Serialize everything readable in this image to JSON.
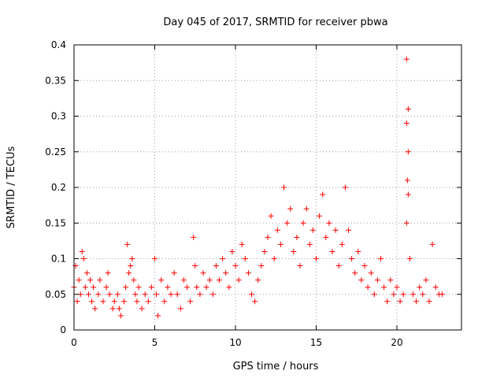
{
  "chart_data": {
    "type": "scatter",
    "title": "Day 045 of 2017, SRMTID for receiver pbwa",
    "xlabel": "GPS time / hours",
    "ylabel": "SRMTID / TECUs",
    "xlim": [
      0,
      24
    ],
    "ylim": [
      0,
      0.4
    ],
    "xticks": [
      0,
      5,
      10,
      15,
      20
    ],
    "xtick_labels": [
      "0",
      "5",
      "10",
      "15",
      "20"
    ],
    "yticks": [
      0,
      0.05,
      0.1,
      0.15,
      0.2,
      0.25,
      0.3,
      0.35,
      0.4
    ],
    "ytick_labels": [
      "0",
      "0.05",
      "0.1",
      "0.15",
      "0.2",
      "0.25",
      "0.3",
      "0.35",
      "0.4"
    ],
    "grid": true,
    "marker": "plus",
    "color": "#ff0000",
    "series": [
      {
        "name": "SRMTID",
        "points": [
          [
            0.0,
            0.06
          ],
          [
            0.1,
            0.09
          ],
          [
            0.2,
            0.04
          ],
          [
            0.3,
            0.07
          ],
          [
            0.4,
            0.05
          ],
          [
            0.5,
            0.11
          ],
          [
            0.6,
            0.1
          ],
          [
            0.7,
            0.06
          ],
          [
            0.8,
            0.08
          ],
          [
            0.9,
            0.05
          ],
          [
            1.0,
            0.07
          ],
          [
            1.1,
            0.04
          ],
          [
            1.2,
            0.06
          ],
          [
            1.3,
            0.03
          ],
          [
            1.5,
            0.05
          ],
          [
            1.6,
            0.07
          ],
          [
            1.8,
            0.04
          ],
          [
            2.0,
            0.06
          ],
          [
            2.1,
            0.08
          ],
          [
            2.2,
            0.05
          ],
          [
            2.4,
            0.03
          ],
          [
            2.5,
            0.04
          ],
          [
            2.7,
            0.05
          ],
          [
            2.8,
            0.03
          ],
          [
            2.9,
            0.02
          ],
          [
            3.1,
            0.04
          ],
          [
            3.2,
            0.06
          ],
          [
            3.3,
            0.12
          ],
          [
            3.4,
            0.08
          ],
          [
            3.5,
            0.09
          ],
          [
            3.6,
            0.1
          ],
          [
            3.7,
            0.07
          ],
          [
            3.8,
            0.05
          ],
          [
            3.9,
            0.04
          ],
          [
            4.0,
            0.06
          ],
          [
            4.2,
            0.03
          ],
          [
            4.4,
            0.05
          ],
          [
            4.6,
            0.04
          ],
          [
            4.8,
            0.06
          ],
          [
            5.0,
            0.1
          ],
          [
            5.1,
            0.05
          ],
          [
            5.2,
            0.02
          ],
          [
            5.4,
            0.07
          ],
          [
            5.6,
            0.04
          ],
          [
            5.8,
            0.06
          ],
          [
            6.0,
            0.05
          ],
          [
            6.2,
            0.08
          ],
          [
            6.4,
            0.05
          ],
          [
            6.6,
            0.03
          ],
          [
            6.8,
            0.07
          ],
          [
            7.0,
            0.06
          ],
          [
            7.2,
            0.04
          ],
          [
            7.4,
            0.13
          ],
          [
            7.5,
            0.09
          ],
          [
            7.6,
            0.06
          ],
          [
            7.8,
            0.05
          ],
          [
            8.0,
            0.08
          ],
          [
            8.2,
            0.06
          ],
          [
            8.4,
            0.07
          ],
          [
            8.6,
            0.05
          ],
          [
            8.8,
            0.09
          ],
          [
            9.0,
            0.07
          ],
          [
            9.2,
            0.1
          ],
          [
            9.4,
            0.08
          ],
          [
            9.6,
            0.06
          ],
          [
            9.8,
            0.11
          ],
          [
            10.0,
            0.09
          ],
          [
            10.2,
            0.07
          ],
          [
            10.4,
            0.12
          ],
          [
            10.6,
            0.1
          ],
          [
            10.8,
            0.08
          ],
          [
            11.0,
            0.05
          ],
          [
            11.2,
            0.04
          ],
          [
            11.4,
            0.07
          ],
          [
            11.6,
            0.09
          ],
          [
            11.8,
            0.11
          ],
          [
            12.0,
            0.13
          ],
          [
            12.2,
            0.16
          ],
          [
            12.4,
            0.1
          ],
          [
            12.6,
            0.14
          ],
          [
            12.8,
            0.12
          ],
          [
            13.0,
            0.2
          ],
          [
            13.2,
            0.15
          ],
          [
            13.4,
            0.17
          ],
          [
            13.6,
            0.11
          ],
          [
            13.8,
            0.13
          ],
          [
            14.0,
            0.09
          ],
          [
            14.2,
            0.15
          ],
          [
            14.4,
            0.17
          ],
          [
            14.6,
            0.12
          ],
          [
            14.8,
            0.14
          ],
          [
            15.0,
            0.1
          ],
          [
            15.2,
            0.16
          ],
          [
            15.4,
            0.19
          ],
          [
            15.6,
            0.13
          ],
          [
            15.8,
            0.15
          ],
          [
            16.0,
            0.11
          ],
          [
            16.2,
            0.14
          ],
          [
            16.4,
            0.09
          ],
          [
            16.6,
            0.12
          ],
          [
            16.8,
            0.2
          ],
          [
            17.0,
            0.14
          ],
          [
            17.2,
            0.1
          ],
          [
            17.4,
            0.08
          ],
          [
            17.6,
            0.11
          ],
          [
            17.8,
            0.07
          ],
          [
            18.0,
            0.09
          ],
          [
            18.2,
            0.06
          ],
          [
            18.4,
            0.08
          ],
          [
            18.6,
            0.05
          ],
          [
            18.8,
            0.07
          ],
          [
            19.0,
            0.1
          ],
          [
            19.2,
            0.06
          ],
          [
            19.4,
            0.04
          ],
          [
            19.6,
            0.07
          ],
          [
            19.8,
            0.05
          ],
          [
            20.0,
            0.06
          ],
          [
            20.2,
            0.04
          ],
          [
            20.4,
            0.05
          ],
          [
            20.6,
            0.38
          ],
          [
            20.7,
            0.31
          ],
          [
            20.6,
            0.29
          ],
          [
            20.7,
            0.25
          ],
          [
            20.65,
            0.21
          ],
          [
            20.7,
            0.19
          ],
          [
            20.6,
            0.15
          ],
          [
            20.8,
            0.1
          ],
          [
            21.0,
            0.05
          ],
          [
            21.2,
            0.04
          ],
          [
            21.4,
            0.06
          ],
          [
            21.6,
            0.05
          ],
          [
            21.8,
            0.07
          ],
          [
            22.0,
            0.04
          ],
          [
            22.2,
            0.12
          ],
          [
            22.4,
            0.06
          ],
          [
            22.6,
            0.05
          ],
          [
            22.8,
            0.05
          ]
        ]
      }
    ]
  }
}
